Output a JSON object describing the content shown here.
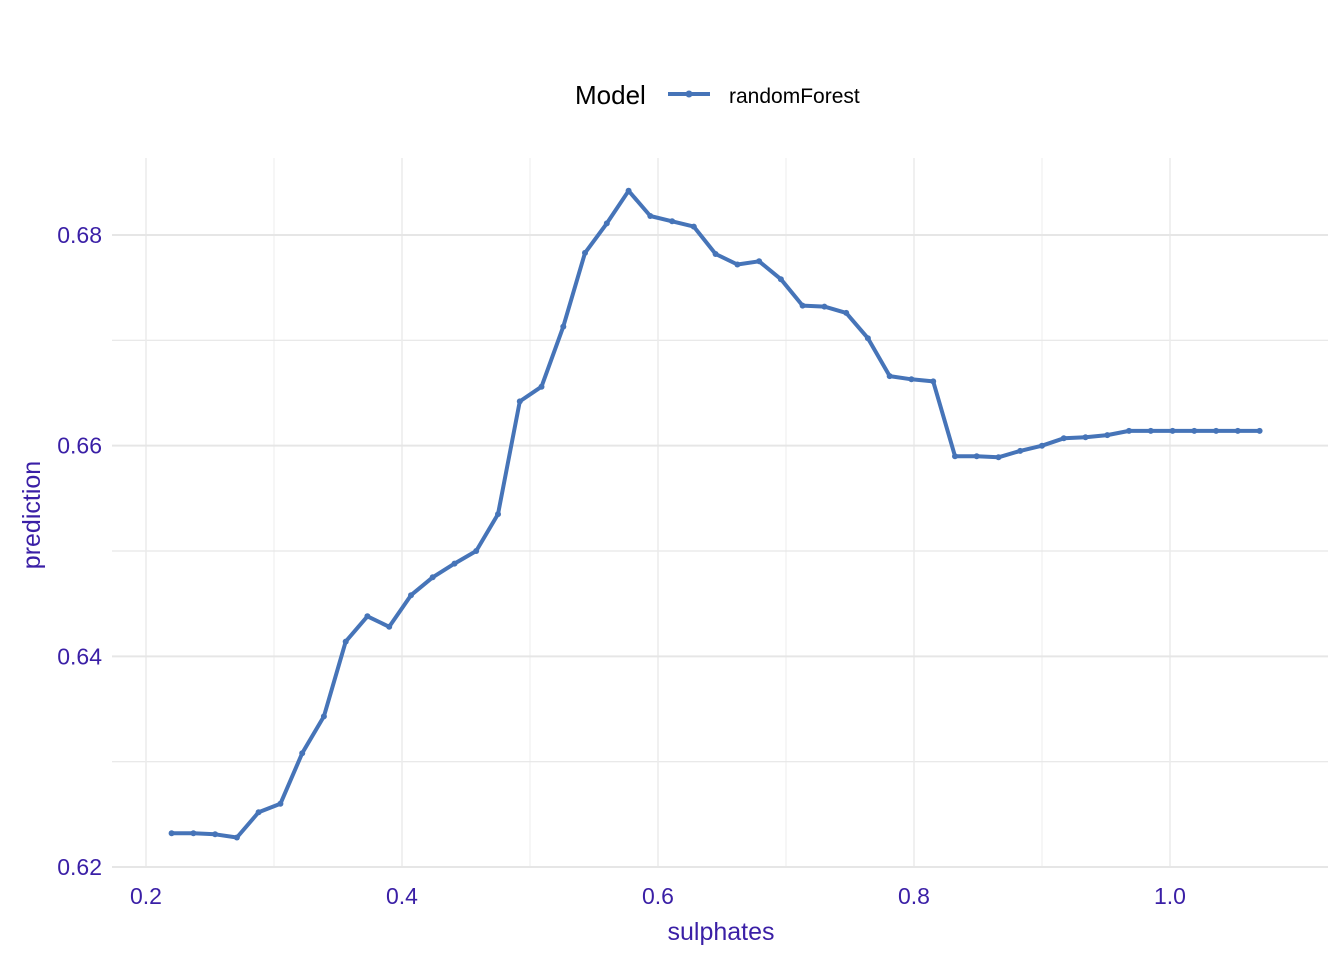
{
  "chart_data": {
    "type": "line",
    "title": "",
    "xlabel": "sulphates",
    "ylabel": "prediction",
    "xlim": [
      0.18,
      1.1
    ],
    "ylim": [
      0.62,
      0.687
    ],
    "x_ticks": [
      0.2,
      0.4,
      0.6,
      0.8,
      1.0
    ],
    "x_tick_labels": [
      "0.2",
      "0.4",
      "0.6",
      "0.8",
      "1.0"
    ],
    "y_ticks": [
      0.62,
      0.64,
      0.66,
      0.68
    ],
    "y_tick_labels": [
      "0.62",
      "0.64",
      "0.66",
      "0.68"
    ],
    "grid": true,
    "legend": {
      "title": "Model",
      "position": "top"
    },
    "colors": {
      "axis_text": "#3a1fa6",
      "series": "#4674b8",
      "grid": "#e6e6e6"
    },
    "series": [
      {
        "name": "randomForest",
        "points": [
          [
            0.22,
            0.6232
          ],
          [
            0.237,
            0.6232
          ],
          [
            0.254,
            0.6231
          ],
          [
            0.271,
            0.6228
          ],
          [
            0.288,
            0.6252
          ],
          [
            0.305,
            0.626
          ],
          [
            0.322,
            0.6308
          ],
          [
            0.339,
            0.6343
          ],
          [
            0.356,
            0.6414
          ],
          [
            0.373,
            0.6438
          ],
          [
            0.39,
            0.6428
          ],
          [
            0.407,
            0.6458
          ],
          [
            0.424,
            0.6475
          ],
          [
            0.441,
            0.6488
          ],
          [
            0.458,
            0.65
          ],
          [
            0.475,
            0.6535
          ],
          [
            0.492,
            0.6642
          ],
          [
            0.509,
            0.6656
          ],
          [
            0.526,
            0.6713
          ],
          [
            0.543,
            0.6783
          ],
          [
            0.56,
            0.6811
          ],
          [
            0.577,
            0.6842
          ],
          [
            0.594,
            0.6818
          ],
          [
            0.611,
            0.6813
          ],
          [
            0.628,
            0.6808
          ],
          [
            0.645,
            0.6782
          ],
          [
            0.662,
            0.6772
          ],
          [
            0.679,
            0.6775
          ],
          [
            0.696,
            0.6758
          ],
          [
            0.713,
            0.6733
          ],
          [
            0.73,
            0.6732
          ],
          [
            0.747,
            0.6726
          ],
          [
            0.764,
            0.6702
          ],
          [
            0.781,
            0.6666
          ],
          [
            0.798,
            0.6663
          ],
          [
            0.815,
            0.6661
          ],
          [
            0.832,
            0.659
          ],
          [
            0.849,
            0.659
          ],
          [
            0.866,
            0.6589
          ],
          [
            0.883,
            0.6595
          ],
          [
            0.9,
            0.66
          ],
          [
            0.917,
            0.6607
          ],
          [
            0.934,
            0.6608
          ],
          [
            0.951,
            0.661
          ],
          [
            0.968,
            0.6614
          ],
          [
            0.985,
            0.6614
          ],
          [
            1.002,
            0.6614
          ],
          [
            1.019,
            0.6614
          ],
          [
            1.036,
            0.6614
          ],
          [
            1.053,
            0.6614
          ],
          [
            1.07,
            0.6614
          ]
        ]
      }
    ]
  }
}
